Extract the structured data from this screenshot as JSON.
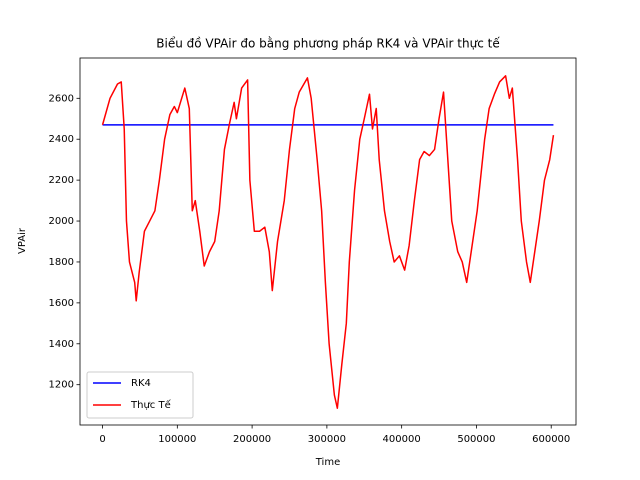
{
  "chart_data": {
    "type": "line",
    "title": "Biểu đồ VPAir đo bằng phương pháp RK4 và VPAir thực tế",
    "x_label": "Time",
    "y_label": "VPAir",
    "xlim": [
      -30150,
      633150
    ],
    "ylim": [
      1003,
      2797
    ],
    "xticks": [
      0,
      100000,
      200000,
      300000,
      400000,
      500000,
      600000
    ],
    "yticks": [
      1200,
      1400,
      1600,
      1800,
      2000,
      2200,
      2400,
      2600
    ],
    "grid": false,
    "legend": "lower left",
    "series": [
      {
        "name": "RK4",
        "color": "#0000ff",
        "x": [
          0,
          603000
        ],
        "values": [
          2470,
          2470
        ]
      },
      {
        "name": "Thực Tế",
        "color": "#ff0000",
        "x": [
          0,
          10000,
          20000,
          25000,
          29000,
          32000,
          36000,
          43000,
          45000,
          49000,
          56000,
          63000,
          70000,
          76000,
          83000,
          90000,
          96000,
          100000,
          110000,
          116000,
          120000,
          124000,
          130000,
          136000,
          143000,
          150000,
          156000,
          163000,
          170000,
          176000,
          179000,
          186000,
          194000,
          197000,
          203000,
          210000,
          217000,
          223000,
          227000,
          234000,
          243000,
          250000,
          257000,
          263000,
          274000,
          279000,
          287000,
          293000,
          298000,
          303000,
          310000,
          314000,
          320000,
          326000,
          330000,
          337000,
          344000,
          350000,
          357000,
          361000,
          366000,
          370000,
          377000,
          384000,
          390000,
          397000,
          404000,
          410000,
          417000,
          424000,
          430000,
          437000,
          444000,
          450000,
          456000,
          460000,
          467000,
          475000,
          481000,
          487000,
          493000,
          501000,
          511000,
          517000,
          524000,
          531000,
          539000,
          544000,
          548000,
          555000,
          560000,
          567000,
          572000,
          578000,
          584000,
          591000,
          598000,
          603000
        ],
        "values": [
          2470,
          2600,
          2670,
          2680,
          2450,
          2000,
          1800,
          1700,
          1610,
          1750,
          1950,
          2000,
          2050,
          2200,
          2400,
          2520,
          2560,
          2530,
          2650,
          2550,
          2050,
          2100,
          1950,
          1780,
          1850,
          1900,
          2050,
          2350,
          2480,
          2580,
          2500,
          2650,
          2690,
          2200,
          1950,
          1950,
          1970,
          1850,
          1660,
          1900,
          2100,
          2350,
          2550,
          2630,
          2700,
          2600,
          2300,
          2050,
          1700,
          1400,
          1150,
          1085,
          1300,
          1500,
          1800,
          2150,
          2400,
          2500,
          2620,
          2450,
          2550,
          2300,
          2050,
          1900,
          1800,
          1830,
          1760,
          1880,
          2100,
          2300,
          2340,
          2320,
          2350,
          2500,
          2630,
          2400,
          2000,
          1850,
          1800,
          1700,
          1850,
          2050,
          2400,
          2550,
          2620,
          2680,
          2710,
          2600,
          2650,
          2300,
          2000,
          1800,
          1700,
          1850,
          2000,
          2200,
          2300,
          2420
        ]
      }
    ]
  }
}
